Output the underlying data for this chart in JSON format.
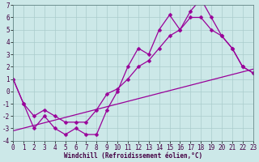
{
  "xlabel": "Windchill (Refroidissement éolien,°C)",
  "bg_color": "#cce8e8",
  "line_color": "#990099",
  "grid_color": "#aacccc",
  "xlim": [
    0,
    23
  ],
  "ylim": [
    -4,
    7
  ],
  "xticks": [
    0,
    1,
    2,
    3,
    4,
    5,
    6,
    7,
    8,
    9,
    10,
    11,
    12,
    13,
    14,
    15,
    16,
    17,
    18,
    19,
    20,
    21,
    22,
    23
  ],
  "yticks": [
    -4,
    -3,
    -2,
    -1,
    0,
    1,
    2,
    3,
    4,
    5,
    6,
    7
  ],
  "line1_x": [
    0,
    1,
    2,
    3,
    4,
    5,
    6,
    7,
    8,
    9,
    10,
    11,
    12,
    13,
    14,
    15,
    16,
    17,
    18,
    19,
    20,
    21,
    22,
    23
  ],
  "line1_y": [
    1,
    -1,
    -3,
    -2,
    -3,
    -3.5,
    -3,
    -3.5,
    -3.5,
    -1.5,
    0,
    2,
    3.5,
    3,
    5,
    6.2,
    5,
    6.5,
    7.5,
    6,
    4.5,
    3.5,
    2,
    1.5
  ],
  "line2_x": [
    0,
    1,
    2,
    3,
    4,
    5,
    6,
    7,
    8,
    9,
    10,
    11,
    12,
    13,
    14,
    15,
    16,
    17,
    18,
    19,
    20,
    21,
    22,
    23
  ],
  "line2_y": [
    1,
    -1,
    -2,
    -1.5,
    -2,
    -2.5,
    -2.5,
    -2.5,
    -1.5,
    -0.2,
    0.2,
    1,
    2,
    2.5,
    3.5,
    4.5,
    5,
    6,
    6,
    5,
    4.5,
    3.5,
    2,
    1.5
  ],
  "line3_x": [
    0,
    23
  ],
  "line3_y": [
    -3.2,
    1.8
  ],
  "tick_fontsize": 5.5,
  "xlabel_fontsize": 5.5,
  "lw": 0.9,
  "marker_size": 2.5
}
